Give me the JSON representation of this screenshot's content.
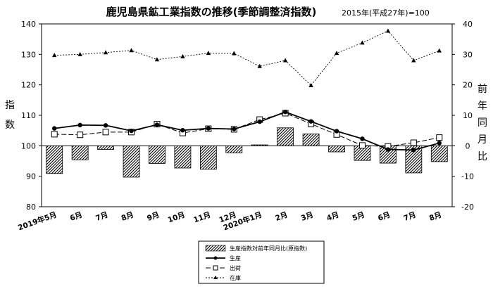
{
  "chart_data": {
    "type": "bar+line",
    "title": "鹿児島県鉱工業指数の推移(季節調整済指数)",
    "subtitle": "2015年(平成27年)=100",
    "ylabel_left": "指数",
    "ylabel_right": "前年同月比",
    "ylim_left": [
      80,
      140
    ],
    "yticks_left": [
      "80",
      "90",
      "100",
      "110",
      "120",
      "130",
      "140"
    ],
    "ylim_right": [
      -20,
      40
    ],
    "yticks_right": [
      "-20",
      "-10",
      "0",
      "10",
      "20",
      "30",
      "40"
    ],
    "categories": [
      "2019年5月",
      "6月",
      "7月",
      "8月",
      "9月",
      "10月",
      "11月",
      "12月",
      "2020年1月",
      "2月",
      "3月",
      "4月",
      "5月",
      "6月",
      "7月",
      "8月"
    ],
    "series": [
      {
        "name": "生産指数対前年同月比(原指数)",
        "type": "bar",
        "axis": "right",
        "values": [
          -9.1,
          -4.6,
          -1.2,
          -10.3,
          -5.8,
          -7.3,
          -7.7,
          -2.3,
          0.3,
          5.9,
          3.9,
          -2.0,
          -4.8,
          -5.7,
          -8.9,
          -5.2
        ]
      },
      {
        "name": "生産",
        "type": "line",
        "axis": "left",
        "values": [
          105.7,
          106.8,
          106.7,
          104.9,
          106.9,
          105.1,
          105.7,
          105.5,
          107.9,
          111.1,
          108.0,
          104.8,
          102.3,
          98.8,
          98.6,
          100.9
        ]
      },
      {
        "name": "出荷",
        "type": "line",
        "axis": "left",
        "values": [
          103.8,
          103.6,
          104.5,
          104.5,
          107.1,
          104.2,
          105.6,
          105.4,
          108.6,
          110.7,
          107.2,
          103.7,
          100.1,
          99.8,
          101.0,
          102.7
        ]
      },
      {
        "name": "在庫",
        "type": "line",
        "axis": "left",
        "values": [
          129.7,
          130.0,
          130.6,
          131.3,
          128.3,
          129.3,
          130.4,
          130.3,
          126.1,
          128.0,
          119.8,
          130.4,
          133.8,
          137.7,
          128.0,
          131.2
        ]
      }
    ]
  }
}
